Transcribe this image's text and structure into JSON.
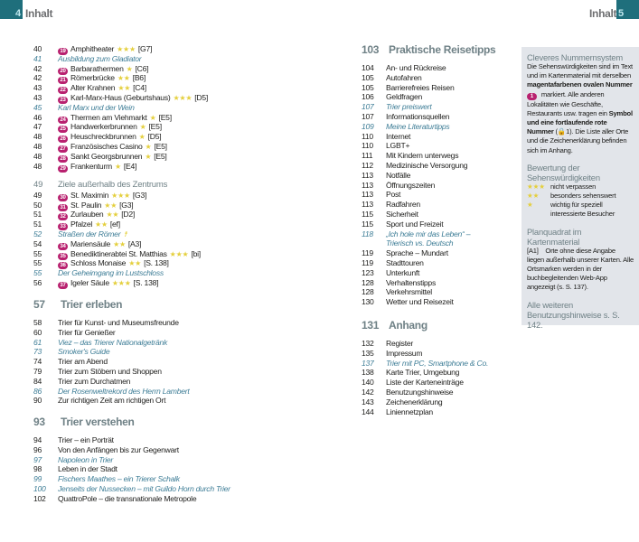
{
  "header": {
    "left_page": "4",
    "left_title": "Inhalt",
    "right_title": "Inhalt",
    "right_page": "5"
  },
  "colors": {
    "accent": "#1f6f7c",
    "magenta": "#b8216f",
    "star": "#e4cf3c",
    "italic": "#3f7e97"
  },
  "left_top": [
    {
      "page": "40",
      "marker": "19",
      "title": "Amphitheater",
      "stars": "★★★",
      "ref": "[G7]"
    },
    {
      "page": "41",
      "title": "Ausbildung zum Gladiator",
      "italic": true
    },
    {
      "page": "42",
      "marker": "20",
      "title": "Barbarathermen",
      "stars": "★",
      "ref": "[C6]"
    },
    {
      "page": "42",
      "marker": "21",
      "title": "Römerbrücke",
      "stars": "★★",
      "ref": "[B6]"
    },
    {
      "page": "43",
      "marker": "22",
      "title": "Alter Krahnen",
      "stars": "★★",
      "ref": "[C4]"
    },
    {
      "page": "43",
      "marker": "23",
      "title": "Karl-Marx-Haus (Geburtshaus)",
      "stars": "★★★",
      "ref": "[D5]"
    },
    {
      "page": "45",
      "title": "Karl Marx und der Wein",
      "italic": true
    },
    {
      "page": "46",
      "marker": "24",
      "title": "Thermen am Viehmarkt",
      "stars": "★",
      "ref": "[E5]"
    },
    {
      "page": "47",
      "marker": "25",
      "title": "Handwerkerbrunnen",
      "stars": "★",
      "ref": "[E5]"
    },
    {
      "page": "48",
      "marker": "26",
      "title": "Heuschreckbrunnen",
      "stars": "★",
      "ref": "[D5]"
    },
    {
      "page": "48",
      "marker": "27",
      "title": "Französisches Casino",
      "stars": "★",
      "ref": "[E5]"
    },
    {
      "page": "48",
      "marker": "28",
      "title": "Sankt Georgsbrunnen",
      "stars": "★",
      "ref": "[E5]"
    },
    {
      "page": "48",
      "marker": "29",
      "title": "Frankenturm",
      "stars": "★",
      "ref": "[E4]"
    }
  ],
  "left_sub": {
    "page": "49",
    "title": "Ziele außerhalb des Zentrums",
    "items": [
      {
        "page": "49",
        "marker": "30",
        "title": "St. Maximin",
        "stars": "★★★",
        "ref": "[G3]"
      },
      {
        "page": "50",
        "marker": "31",
        "title": "St. Paulin",
        "stars": "★★",
        "ref": "[G3]"
      },
      {
        "page": "51",
        "marker": "32",
        "title": "Zurlauben",
        "stars": "★★",
        "ref": "[D2]"
      },
      {
        "page": "51",
        "marker": "33",
        "title": "Pfalzel",
        "stars": "★★",
        "ref": "[ef]"
      },
      {
        "page": "52",
        "title": "Straßen der Römer",
        "italic": true,
        "icon": "☨"
      },
      {
        "page": "54",
        "marker": "34",
        "title": "Mariensäule",
        "stars": "★★",
        "ref": "[A3]"
      },
      {
        "page": "55",
        "marker": "35",
        "title": "Benediktinerabtei St. Matthias",
        "stars": "★★★",
        "ref": "[bi]"
      },
      {
        "page": "55",
        "marker": "36",
        "title": "Schloss Monaise",
        "stars": "★★",
        "ref": "[S. 138]"
      },
      {
        "page": "55",
        "title": "Der Geheimgang im Lustschloss",
        "italic": true
      },
      {
        "page": "56",
        "marker": "37",
        "title": "Igeler Säule",
        "stars": "★★★",
        "ref": "[S. 138]"
      }
    ]
  },
  "sections": [
    {
      "page": "57",
      "title": "Trier erleben",
      "items": [
        {
          "page": "58",
          "title": "Trier für Kunst- und Museumsfreunde"
        },
        {
          "page": "60",
          "title": "Trier für Genießer"
        },
        {
          "page": "61",
          "title": "Viez – das Trierer Nationalgetränk",
          "italic": true
        },
        {
          "page": "73",
          "title": "Smoker's Guide",
          "italic": true
        },
        {
          "page": "74",
          "title": "Trier am Abend"
        },
        {
          "page": "79",
          "title": "Trier zum Stöbern und Shoppen"
        },
        {
          "page": "84",
          "title": "Trier zum Durchatmen"
        },
        {
          "page": "86",
          "title": "Der Rosenweltrekord des Herrn Lambert",
          "italic": true
        },
        {
          "page": "90",
          "title": "Zur richtigen Zeit am richtigen Ort"
        }
      ]
    },
    {
      "page": "93",
      "title": "Trier verstehen",
      "items": [
        {
          "page": "94",
          "title": "Trier – ein Porträt"
        },
        {
          "page": "96",
          "title": "Von den Anfängen bis zur Gegenwart"
        },
        {
          "page": "97",
          "title": "Napoleon in Trier",
          "italic": true
        },
        {
          "page": "98",
          "title": "Leben in der Stadt"
        },
        {
          "page": "99",
          "title": "Fischers Maathes – ein Trierer Schalk",
          "italic": true
        },
        {
          "page": "100",
          "title": "Jenseits der Nussecken – mit Guildo Horn durch Trier",
          "italic": true
        },
        {
          "page": "102",
          "title": "QuattroPole – die transnationale Metropole"
        }
      ]
    },
    {
      "page": "103",
      "title": "Praktische Reisetipps",
      "items": [
        {
          "page": "104",
          "title": "An- und Rückreise"
        },
        {
          "page": "105",
          "title": "Autofahren"
        },
        {
          "page": "105",
          "title": "Barrierefreies Reisen"
        },
        {
          "page": "106",
          "title": "Geldfragen"
        },
        {
          "page": "107",
          "title": "Trier preiswert",
          "italic": true
        },
        {
          "page": "107",
          "title": "Informationsquellen"
        },
        {
          "page": "109",
          "title": "Meine Literaturtipps",
          "italic": true
        },
        {
          "page": "110",
          "title": "Internet"
        },
        {
          "page": "110",
          "title": "LGBT+"
        },
        {
          "page": "111",
          "title": "Mit Kindern unterwegs"
        },
        {
          "page": "112",
          "title": "Medizinische Versorgung"
        },
        {
          "page": "113",
          "title": "Notfälle"
        },
        {
          "page": "113",
          "title": "Öffnungszeiten"
        },
        {
          "page": "113",
          "title": "Post"
        },
        {
          "page": "113",
          "title": "Radfahren"
        },
        {
          "page": "115",
          "title": "Sicherheit"
        },
        {
          "page": "115",
          "title": "Sport und Freizeit"
        },
        {
          "page": "118",
          "title": "„Ich hole mir das Leben“ –",
          "italic": true
        },
        {
          "page": "",
          "title": "Trierisch vs. Deutsch",
          "italic": true,
          "cont": true
        },
        {
          "page": "119",
          "title": "Sprache – Mundart"
        },
        {
          "page": "119",
          "title": "Stadttouren"
        },
        {
          "page": "123",
          "title": "Unterkunft"
        },
        {
          "page": "128",
          "title": "Verhaltenstipps"
        },
        {
          "page": "128",
          "title": "Verkehrsmittel"
        },
        {
          "page": "130",
          "title": "Wetter und Reisezeit"
        }
      ]
    },
    {
      "page": "131",
      "title": "Anhang",
      "items": [
        {
          "page": "132",
          "title": "Register"
        },
        {
          "page": "135",
          "title": "Impressum"
        },
        {
          "page": "137",
          "title": "Trier mit PC, Smartphone & Co.",
          "italic": true
        },
        {
          "page": "138",
          "title": "Karte Trier, Umgebung"
        },
        {
          "page": "140",
          "title": "Liste der Karteneinträge"
        },
        {
          "page": "142",
          "title": "Benutzungshinweise"
        },
        {
          "page": "143",
          "title": "Zeichenerklärung"
        },
        {
          "page": "144",
          "title": "Liniennetzplan"
        }
      ]
    }
  ],
  "sidebar": {
    "numbering_title": "Cleveres Nummernsystem",
    "numbering_t1": "Die Sehenswürdigkeiten sind im Text und im Kartenmaterial mit derselben ",
    "numbering_b1": "magentafarbenen ovalen Nummer",
    "numbering_marker": "1",
    "numbering_t2": " markiert. Alle anderen Lokalitäten wie Geschäfte, Restaurants usw. tragen ein ",
    "numbering_b2": "Symbol und eine fortlaufende rote Nummer",
    "numbering_t3": " (🔒1). Die Liste aller Orte und die Zeichenerklärung befinden sich im Anhang.",
    "rating_title": "Bewertung der Sehenswürdigkeiten",
    "ratings": [
      {
        "stars": "★★★",
        "label": "nicht verpassen"
      },
      {
        "stars": "★★",
        "label": "besonders sehenswert"
      },
      {
        "stars": "★",
        "label": "wichtig für speziell interessierte Besucher"
      }
    ],
    "grid_title": "Planquadrat im Kartenmaterial",
    "grid_ref": "[A1]",
    "grid_text": "Orte ohne diese Angabe liegen außerhalb unserer Karten. Alle Ortsmarken werden in der buchbegleitenden Web-App angezeigt (s. S. 137).",
    "more": "Alle weiteren Benutzungshinweise s. S. 142."
  }
}
